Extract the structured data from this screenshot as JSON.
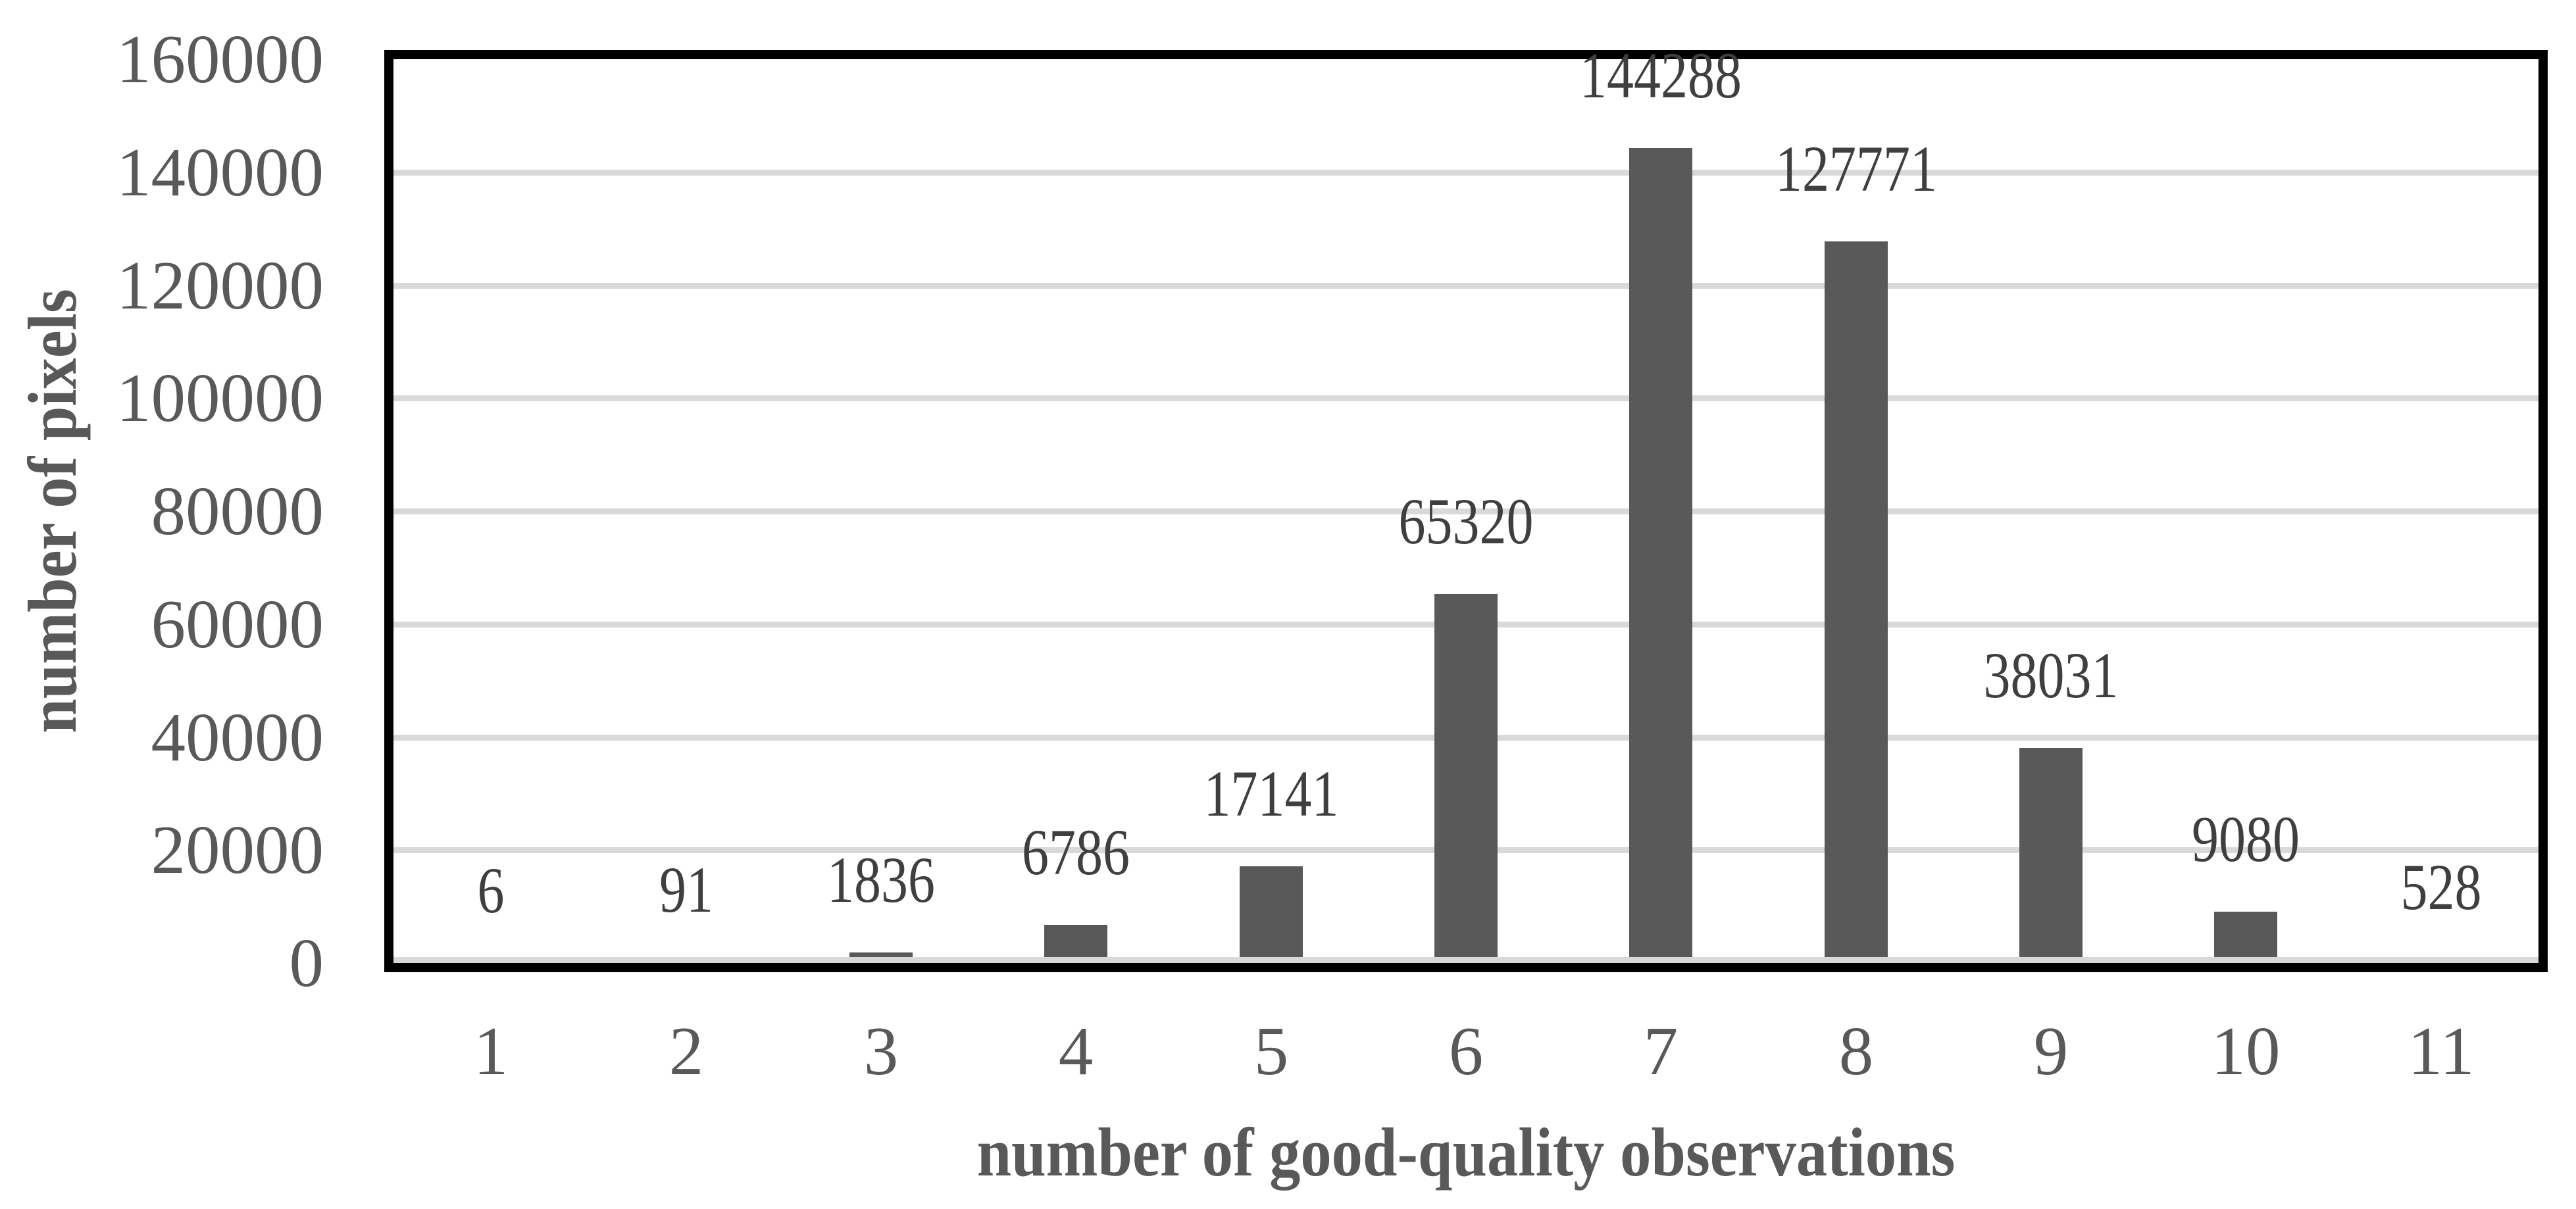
{
  "chart_data": {
    "type": "bar",
    "categories": [
      "1",
      "2",
      "3",
      "4",
      "5",
      "6",
      "7",
      "8",
      "9",
      "10",
      "11"
    ],
    "values": [
      6,
      91,
      1836,
      6786,
      17141,
      65320,
      144288,
      127771,
      38031,
      9080,
      528
    ],
    "xlabel": "number of good-quality observations",
    "ylabel": "number of pixels",
    "ylim": [
      0,
      160000
    ],
    "yticks": [
      0,
      20000,
      40000,
      60000,
      80000,
      100000,
      120000,
      140000,
      160000
    ],
    "grid": "horizontal",
    "legend": "none",
    "data_labels_position": "above-bar",
    "colors": {
      "bar": "#595959",
      "gridline": "#d9d9d9",
      "plot_border": "#000000",
      "axis_text": "#595959",
      "data_label_text": "#3f3f3f",
      "background": "#ffffff"
    }
  }
}
